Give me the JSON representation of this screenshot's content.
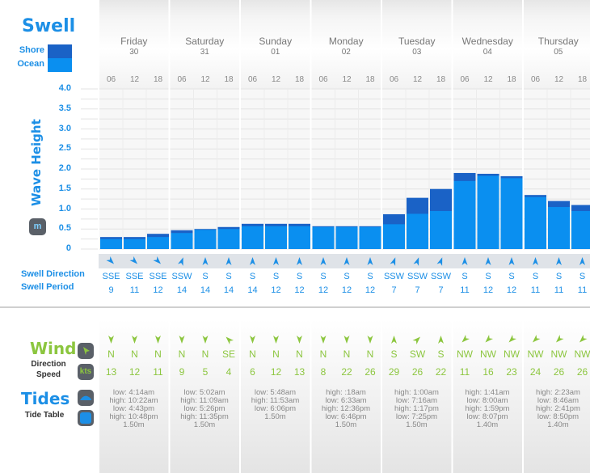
{
  "swell_title": "Swell",
  "legend": [
    {
      "label": "Shore",
      "color": "#1a62c6"
    },
    {
      "label": "Ocean",
      "color": "#0a8ff0"
    }
  ],
  "wave_height_label": "Wave Height",
  "unit_label": "m",
  "swell_direction_label": "Swell Direction",
  "swell_period_label": "Swell Period",
  "wind": {
    "title": "Wind",
    "direction_label": "Direction",
    "speed_label": "Speed",
    "unit": "kts"
  },
  "tides": {
    "title": "Tides",
    "table_label": "Tide Table"
  },
  "colors": {
    "ocean": "#0a8ff0",
    "shore": "#1a62c6",
    "wind": "#8cc63f",
    "accent": "#1c8fe6"
  },
  "chart_data": {
    "type": "bar",
    "ylim": [
      0,
      4.0
    ],
    "yticks": [
      "0",
      "0.5",
      "1.0",
      "1.5",
      "2.0",
      "2.5",
      "3.0",
      "3.5",
      "4.0"
    ],
    "days": [
      {
        "name": "Friday",
        "date": "30",
        "hours": [
          "06",
          "12",
          "18"
        ],
        "ocean": [
          0.25,
          0.25,
          0.3
        ],
        "total": [
          0.3,
          0.3,
          0.38
        ],
        "swell_direction": [
          "SSE",
          "SSE",
          "SSE"
        ],
        "swell_dir_deg": [
          135,
          135,
          135
        ],
        "swell_period": [
          "9",
          "11",
          "12"
        ],
        "wind_direction": [
          "N",
          "N",
          "N"
        ],
        "wind_dir_deg": [
          180,
          180,
          180
        ],
        "wind_speed": [
          "13",
          "12",
          "11"
        ],
        "tides": [
          "low: 4:14am",
          "high: 10:22am",
          "low: 4:43pm",
          "high: 10:48pm",
          "1.50m"
        ]
      },
      {
        "name": "Saturday",
        "date": "31",
        "hours": [
          "06",
          "12",
          "18"
        ],
        "ocean": [
          0.4,
          0.48,
          0.5
        ],
        "total": [
          0.47,
          0.5,
          0.55
        ],
        "swell_direction": [
          "SSW",
          "S",
          "S"
        ],
        "swell_dir_deg": [
          20,
          0,
          0
        ],
        "swell_period": [
          "14",
          "14",
          "14"
        ],
        "wind_direction": [
          "N",
          "N",
          "SE"
        ],
        "wind_dir_deg": [
          180,
          180,
          315
        ],
        "wind_speed": [
          "9",
          "5",
          "4"
        ],
        "tides": [
          "low: 5:02am",
          "high: 11:09am",
          "low: 5:26pm",
          "high: 11:35pm",
          "1.50m"
        ]
      },
      {
        "name": "Sunday",
        "date": "01",
        "hours": [
          "06",
          "12",
          "18"
        ],
        "ocean": [
          0.57,
          0.57,
          0.57
        ],
        "total": [
          0.63,
          0.63,
          0.63
        ],
        "swell_direction": [
          "S",
          "S",
          "S"
        ],
        "swell_dir_deg": [
          0,
          0,
          0
        ],
        "swell_period": [
          "14",
          "12",
          "12"
        ],
        "wind_direction": [
          "N",
          "N",
          "N"
        ],
        "wind_dir_deg": [
          180,
          180,
          180
        ],
        "wind_speed": [
          "6",
          "12",
          "13"
        ],
        "tides": [
          "low: 5:48am",
          "high: 11:53am",
          "low: 6:06pm",
          "1.50m"
        ]
      },
      {
        "name": "Monday",
        "date": "02",
        "hours": [
          "06",
          "12",
          "18"
        ],
        "ocean": [
          0.55,
          0.55,
          0.55
        ],
        "total": [
          0.57,
          0.57,
          0.57
        ],
        "swell_direction": [
          "S",
          "S",
          "S"
        ],
        "swell_dir_deg": [
          0,
          0,
          0
        ],
        "swell_period": [
          "12",
          "12",
          "12"
        ],
        "wind_direction": [
          "N",
          "N",
          "N"
        ],
        "wind_dir_deg": [
          180,
          180,
          180
        ],
        "wind_speed": [
          "8",
          "22",
          "26"
        ],
        "tides": [
          "high: :18am",
          "low: 6:33am",
          "high: 12:36pm",
          "low: 6:46pm",
          "1.50m"
        ]
      },
      {
        "name": "Tuesday",
        "date": "03",
        "hours": [
          "06",
          "12",
          "18"
        ],
        "ocean": [
          0.62,
          0.88,
          0.95
        ],
        "total": [
          0.87,
          1.28,
          1.5
        ],
        "swell_direction": [
          "SSW",
          "SSW",
          "SSW"
        ],
        "swell_dir_deg": [
          20,
          20,
          20
        ],
        "swell_period": [
          "7",
          "7",
          "7"
        ],
        "wind_direction": [
          "S",
          "SW",
          "S"
        ],
        "wind_dir_deg": [
          0,
          45,
          0
        ],
        "wind_speed": [
          "29",
          "26",
          "22"
        ],
        "tides": [
          "high: 1:00am",
          "low: 7:16am",
          "high: 1:17pm",
          "low: 7:25pm",
          "1.50m"
        ]
      },
      {
        "name": "Wednesday",
        "date": "04",
        "hours": [
          "06",
          "12",
          "18"
        ],
        "ocean": [
          1.7,
          1.83,
          1.77
        ],
        "total": [
          1.9,
          1.88,
          1.82
        ],
        "swell_direction": [
          "S",
          "S",
          "S"
        ],
        "swell_dir_deg": [
          0,
          0,
          0
        ],
        "swell_period": [
          "11",
          "12",
          "12"
        ],
        "wind_direction": [
          "NW",
          "NW",
          "NW"
        ],
        "wind_dir_deg": [
          225,
          225,
          225
        ],
        "wind_speed": [
          "11",
          "16",
          "23"
        ],
        "tides": [
          "high: 1:41am",
          "low: 8:00am",
          "high: 1:59pm",
          "low: 8:07pm",
          "1.40m"
        ]
      },
      {
        "name": "Thursday",
        "date": "05",
        "hours": [
          "06",
          "12",
          "18"
        ],
        "ocean": [
          1.3,
          1.05,
          0.95
        ],
        "total": [
          1.35,
          1.2,
          1.1
        ],
        "swell_direction": [
          "S",
          "S",
          "S"
        ],
        "swell_dir_deg": [
          0,
          0,
          0
        ],
        "swell_period": [
          "11",
          "11",
          "11"
        ],
        "wind_direction": [
          "NW",
          "NW",
          "NW"
        ],
        "wind_dir_deg": [
          225,
          225,
          225
        ],
        "wind_speed": [
          "24",
          "26",
          "26"
        ],
        "tides": [
          "high: 2:23am",
          "low: 8:46am",
          "high: 2:41pm",
          "low: 8:50pm",
          "1.40m"
        ]
      }
    ]
  }
}
